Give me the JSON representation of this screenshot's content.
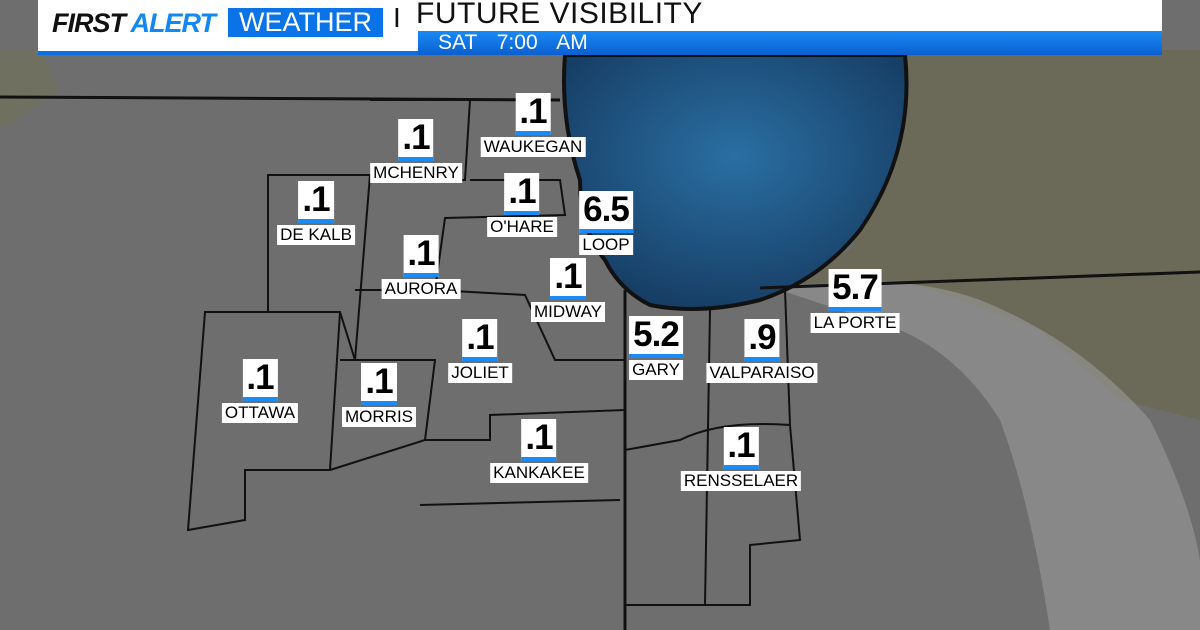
{
  "header": {
    "brand_first": "FIRST",
    "brand_alert": "ALERT",
    "brand_weather": "WEATHER",
    "separator": "I",
    "title": "FUTURE VISIBILITY",
    "day": "SAT",
    "time": "7:00 AM"
  },
  "colors": {
    "accent": "#0a73e8",
    "lake": "#1f5a8a",
    "land": "#6f6f6f"
  },
  "cities": [
    {
      "name": "WAUKEGAN",
      "value": ".1"
    },
    {
      "name": "MCHENRY",
      "value": ".1"
    },
    {
      "name": "DE KALB",
      "value": ".1"
    },
    {
      "name": "O'HARE",
      "value": ".1"
    },
    {
      "name": "LOOP",
      "value": "6.5"
    },
    {
      "name": "AURORA",
      "value": ".1"
    },
    {
      "name": "MIDWAY",
      "value": ".1"
    },
    {
      "name": "GARY",
      "value": "5.2"
    },
    {
      "name": "JOLIET",
      "value": ".1"
    },
    {
      "name": "OTTAWA",
      "value": ".1"
    },
    {
      "name": "MORRIS",
      "value": ".1"
    },
    {
      "name": "VALPARAISO",
      "value": ".9"
    },
    {
      "name": "LA PORTE",
      "value": "5.7"
    },
    {
      "name": "KANKAKEE",
      "value": ".1"
    },
    {
      "name": "RENSSELAER",
      "value": ".1"
    }
  ]
}
